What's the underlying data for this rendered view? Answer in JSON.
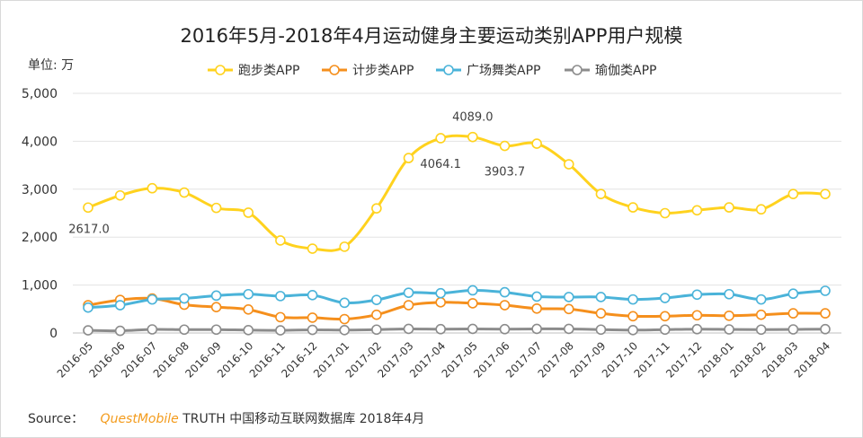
{
  "chart_data": {
    "type": "line",
    "title": "2016年5月-2018年4月运动健身主要运动类别APP用户规模",
    "unit_label": "单位: 万",
    "categories": [
      "2016-05",
      "2016-06",
      "2016-07",
      "2016-08",
      "2016-09",
      "2016-10",
      "2016-11",
      "2016-12",
      "2017-01",
      "2017-02",
      "2017-03",
      "2017-04",
      "2017-05",
      "2017-06",
      "2017-07",
      "2017-08",
      "2017-09",
      "2017-10",
      "2017-11",
      "2017-12",
      "2018-01",
      "2018-02",
      "2018-03",
      "2018-04"
    ],
    "yticks": [
      "0",
      "1,000",
      "2,000",
      "3,000",
      "4,000",
      "5,000"
    ],
    "ylim": [
      0,
      5000
    ],
    "legend_position": "top-center",
    "grid": true,
    "series": [
      {
        "name": "跑步类APP",
        "color": "#ffd21e",
        "values": [
          2617.0,
          2870,
          3020,
          2930,
          2610,
          2510,
          1930,
          1760,
          1800,
          2600,
          3650,
          4064.1,
          4089.0,
          3903.7,
          3950,
          3520,
          2900,
          2620,
          2500,
          2560,
          2620,
          2580,
          2900,
          2900
        ]
      },
      {
        "name": "计步类APP",
        "color": "#f58f1c",
        "values": [
          580,
          690,
          720,
          590,
          540,
          490,
          330,
          320,
          290,
          380,
          580,
          640,
          620,
          580,
          510,
          500,
          410,
          350,
          350,
          370,
          360,
          380,
          410,
          410
        ]
      },
      {
        "name": "广场舞类APP",
        "color": "#4ab3d9",
        "values": [
          530,
          580,
          700,
          720,
          780,
          810,
          770,
          790,
          630,
          690,
          840,
          830,
          890,
          850,
          760,
          750,
          750,
          700,
          730,
          800,
          810,
          700,
          820,
          880
        ]
      },
      {
        "name": "瑜伽类APP",
        "color": "#8c8c8c",
        "values": [
          55,
          45,
          75,
          70,
          70,
          60,
          55,
          65,
          60,
          70,
          85,
          80,
          85,
          80,
          85,
          85,
          70,
          60,
          70,
          80,
          75,
          70,
          75,
          80
        ]
      }
    ],
    "annotations": [
      {
        "text": "2617.0",
        "series": 0,
        "index": 0,
        "anchor": "below-left"
      },
      {
        "text": "4064.1",
        "series": 0,
        "index": 11,
        "anchor": "below"
      },
      {
        "text": "4089.0",
        "series": 0,
        "index": 12,
        "anchor": "above"
      },
      {
        "text": "3903.7",
        "series": 0,
        "index": 13,
        "anchor": "below"
      }
    ]
  },
  "source": {
    "label": "Source：",
    "brand_a": "Quest",
    "brand_b": "Mobile",
    "rest": " TRUTH 中国移动互联网数据库 2018年4月",
    "brand_color": "#f39b1c"
  }
}
